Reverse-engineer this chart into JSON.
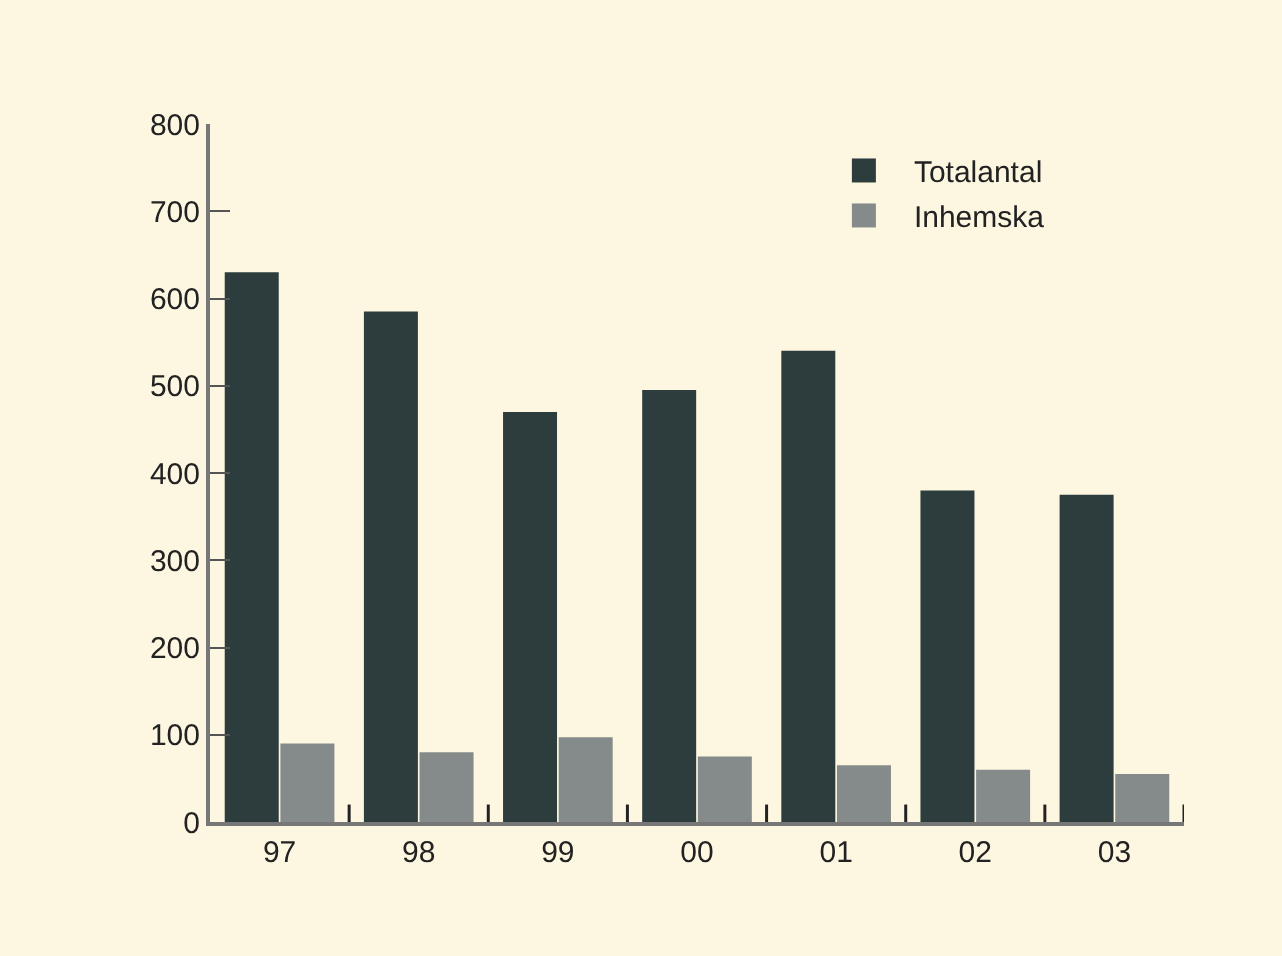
{
  "chart_data": {
    "type": "bar",
    "categories": [
      "97",
      "98",
      "99",
      "00",
      "01",
      "02",
      "03"
    ],
    "series": [
      {
        "name": "Totalantal",
        "color": "#2d3c3c",
        "values": [
          630,
          585,
          470,
          495,
          540,
          380,
          375
        ]
      },
      {
        "name": "Inhemska",
        "color": "#858b8a",
        "values": [
          90,
          80,
          97,
          75,
          65,
          60,
          55
        ]
      }
    ],
    "ylim": [
      0,
      800
    ],
    "yticks": [
      0,
      100,
      200,
      300,
      400,
      500,
      600,
      700,
      800
    ],
    "grid": false,
    "legend": "top right"
  }
}
